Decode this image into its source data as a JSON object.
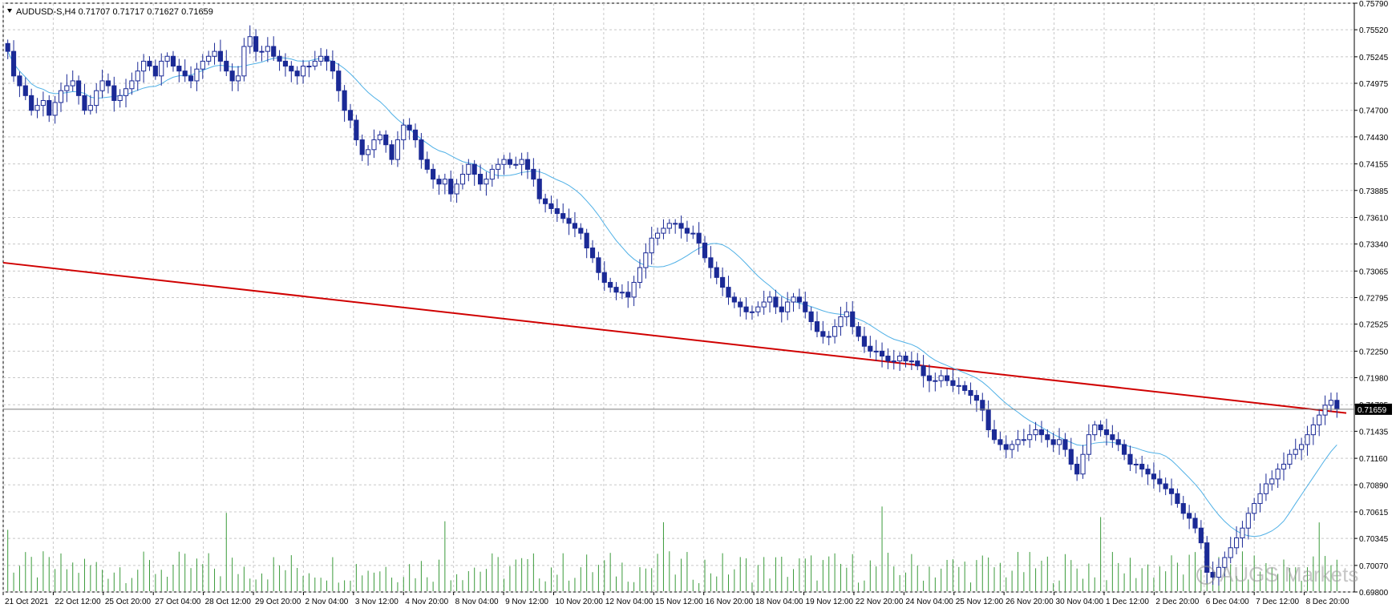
{
  "header": {
    "symbol_line": "AUDUSD-S,H4  0.71707 0.71717 0.71627 0.71659"
  },
  "watermark": {
    "text": "AUGS Markets"
  },
  "colors": {
    "bull": "#1b2a96",
    "bear": "#1b2a96",
    "ma": "#4fb0e6",
    "trendline": "#d00000",
    "volume": "#3a9a3a",
    "grid": "#c8c8c8",
    "axis": "#000000"
  },
  "chart_data": {
    "type": "candlestick",
    "symbol": "AUDUSD-S",
    "timeframe": "H4",
    "current_price_label": "0.71659",
    "y_ticks": [
      "0.75790",
      "0.75520",
      "0.75245",
      "0.74975",
      "0.74700",
      "0.74430",
      "0.74155",
      "0.73885",
      "0.73610",
      "0.73340",
      "0.73065",
      "0.72795",
      "0.72525",
      "0.72250",
      "0.71980",
      "0.71705",
      "0.71435",
      "0.71160",
      "0.70890",
      "0.70615",
      "0.70345",
      "0.70070",
      "0.69800"
    ],
    "x_ticks": [
      "21 Oct 2021",
      "22 Oct 12:00",
      "25 Oct 20:00",
      "27 Oct 04:00",
      "28 Oct 12:00",
      "29 Oct 20:00",
      "2 Nov 04:00",
      "3 Nov 12:00",
      "4 Nov 20:00",
      "8 Nov 04:00",
      "9 Nov 12:00",
      "10 Nov 20:00",
      "12 Nov 04:00",
      "15 Nov 12:00",
      "16 Nov 20:00",
      "18 Nov 04:00",
      "19 Nov 12:00",
      "22 Nov 20:00",
      "24 Nov 04:00",
      "25 Nov 12:00",
      "26 Nov 20:00",
      "30 Nov 04:00",
      "1 Dec 12:00",
      "2 Dec 20:00",
      "6 Dec 04:00",
      "7 Dec 12:00",
      "8 Dec 20:00"
    ],
    "ylim": [
      0.698,
      0.7579
    ],
    "close": [
      0.753,
      0.7505,
      0.7495,
      0.7485,
      0.747,
      0.7475,
      0.748,
      0.7465,
      0.7478,
      0.749,
      0.7495,
      0.75,
      0.7485,
      0.747,
      0.7475,
      0.749,
      0.75,
      0.7495,
      0.748,
      0.7485,
      0.7492,
      0.75,
      0.751,
      0.752,
      0.7515,
      0.7505,
      0.752,
      0.7525,
      0.7515,
      0.751,
      0.7505,
      0.75,
      0.7512,
      0.752,
      0.7525,
      0.753,
      0.752,
      0.751,
      0.75,
      0.7505,
      0.7535,
      0.7545,
      0.753,
      0.753,
      0.7535,
      0.7525,
      0.752,
      0.7515,
      0.751,
      0.7505,
      0.7515,
      0.7515,
      0.752,
      0.7525,
      0.752,
      0.751,
      0.749,
      0.747,
      0.746,
      0.744,
      0.7425,
      0.743,
      0.744,
      0.7445,
      0.7435,
      0.742,
      0.744,
      0.7455,
      0.745,
      0.744,
      0.742,
      0.741,
      0.74,
      0.7395,
      0.74,
      0.7385,
      0.7395,
      0.7405,
      0.7415,
      0.7405,
      0.7395,
      0.74,
      0.741,
      0.7415,
      0.742,
      0.7415,
      0.7415,
      0.742,
      0.741,
      0.74,
      0.738,
      0.7375,
      0.737,
      0.7365,
      0.736,
      0.7355,
      0.735,
      0.7345,
      0.733,
      0.732,
      0.7305,
      0.7295,
      0.729,
      0.7285,
      0.7285,
      0.728,
      0.7295,
      0.731,
      0.7325,
      0.734,
      0.7345,
      0.735,
      0.7355,
      0.7355,
      0.735,
      0.7345,
      0.7345,
      0.7335,
      0.732,
      0.731,
      0.73,
      0.729,
      0.728,
      0.7275,
      0.727,
      0.7265,
      0.7265,
      0.727,
      0.7275,
      0.728,
      0.727,
      0.7265,
      0.7275,
      0.728,
      0.7275,
      0.7265,
      0.7255,
      0.7245,
      0.724,
      0.724,
      0.725,
      0.726,
      0.7265,
      0.725,
      0.724,
      0.723,
      0.7225,
      0.7225,
      0.722,
      0.7215,
      0.7215,
      0.722,
      0.7215,
      0.7215,
      0.721,
      0.72,
      0.7195,
      0.7195,
      0.72,
      0.7195,
      0.719,
      0.719,
      0.7185,
      0.718,
      0.7175,
      0.7165,
      0.7145,
      0.7135,
      0.713,
      0.7125,
      0.713,
      0.7135,
      0.7135,
      0.714,
      0.7145,
      0.714,
      0.7135,
      0.713,
      0.7135,
      0.7125,
      0.711,
      0.71,
      0.712,
      0.714,
      0.715,
      0.7145,
      0.714,
      0.7135,
      0.713,
      0.712,
      0.711,
      0.711,
      0.7105,
      0.71,
      0.7095,
      0.709,
      0.7085,
      0.708,
      0.707,
      0.706,
      0.7055,
      0.7045,
      0.703,
      0.7,
      0.6995,
      0.7005,
      0.7015,
      0.7025,
      0.7035,
      0.7045,
      0.706,
      0.707,
      0.708,
      0.709,
      0.7095,
      0.7105,
      0.711,
      0.712,
      0.7125,
      0.713,
      0.714,
      0.715,
      0.716,
      0.717,
      0.7175,
      0.7166
    ]
  }
}
